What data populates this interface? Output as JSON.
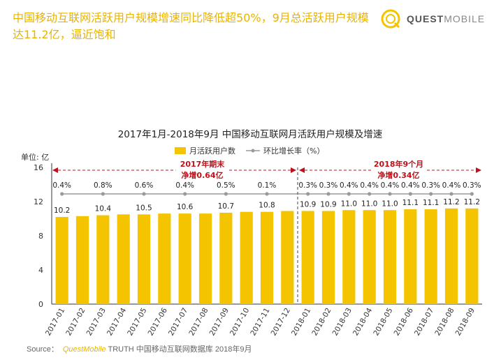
{
  "headline": "中国移动互联网活跃用户规模增速同比降低超50%，9月总活跃用户规模达11.2亿，逼近饱和",
  "logo": {
    "quest": "QUEST",
    "mobile": "MOBILE"
  },
  "source": {
    "label": "Source：",
    "brand": "QuestMobile",
    "text": "TRUTH 中国移动互联网数据库 2018年9月"
  },
  "colors": {
    "bar": "#f5c400",
    "line": "#9a9a9a",
    "accent": "#c0101a",
    "headline": "#e8b400"
  },
  "chart_data": {
    "type": "bar",
    "title": "2017年1月-2018年9月 中国移动互联网月活跃用户规模及增速",
    "unit_label": "单位: 亿",
    "ylim": [
      0,
      16
    ],
    "yticks": [
      0,
      4,
      8,
      12,
      16
    ],
    "grid": false,
    "legend_position": "top",
    "categories": [
      "2017-01",
      "2017-02",
      "2017-03",
      "2017-04",
      "2017-05",
      "2017-06",
      "2017-07",
      "2017-08",
      "2017-09",
      "2017-10",
      "2017-11",
      "2017-12",
      "2018-01",
      "2018-02",
      "2018-03",
      "2018-04",
      "2018-05",
      "2018-06",
      "2018-07",
      "2018-08",
      "2018-09"
    ],
    "series": [
      {
        "name": "月活跃用户数",
        "type": "bar",
        "values": [
          10.2,
          10.3,
          10.4,
          10.5,
          10.5,
          10.6,
          10.6,
          10.6,
          10.7,
          10.8,
          10.8,
          10.9,
          10.9,
          10.9,
          11.0,
          11.0,
          11.0,
          11.1,
          11.1,
          11.2,
          11.2
        ],
        "labels": [
          "10.2",
          "",
          "10.4",
          "",
          "10.5",
          "",
          "10.6",
          "",
          "10.7",
          "",
          "10.8",
          "",
          "10.9",
          "10.9",
          "11.0",
          "11.0",
          "11.0",
          "11.1",
          "11.1",
          "11.2",
          "11.2"
        ]
      },
      {
        "name": "环比增长率（%）",
        "type": "line",
        "values": [
          0.4,
          null,
          0.8,
          null,
          0.6,
          null,
          0.4,
          null,
          0.5,
          null,
          0.1,
          null,
          0.3,
          0.3,
          0.4,
          0.4,
          0.4,
          0.4,
          0.3,
          0.4,
          0.3
        ],
        "labels": [
          "0.4%",
          "",
          "0.8%",
          "",
          "0.6%",
          "",
          "0.4%",
          "",
          "0.5%",
          "",
          "0.1%",
          "",
          "0.3%",
          "0.3%",
          "0.4%",
          "0.4%",
          "0.4%",
          "0.4%",
          "0.3%",
          "0.4%",
          "0.3%"
        ],
        "marker_y": 12.9
      }
    ],
    "annotations": [
      {
        "line1": "2017年期末",
        "line2": "净增0.64亿",
        "from": 0,
        "to": 11
      },
      {
        "line1": "2018年9个月",
        "line2": "净增0.34亿",
        "from": 12,
        "to": 20
      }
    ]
  }
}
